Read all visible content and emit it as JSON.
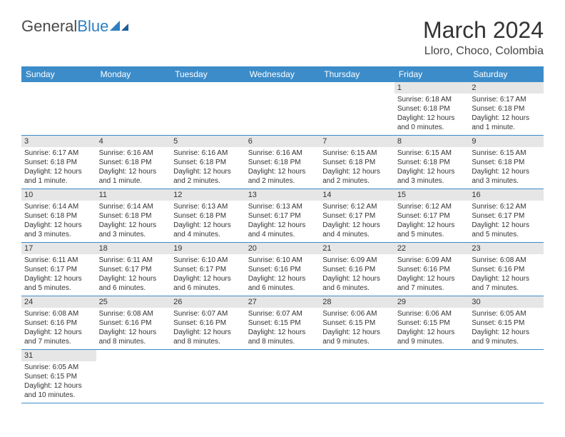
{
  "logo": {
    "general": "General",
    "blue": "Blue"
  },
  "title": "March 2024",
  "location": "Lloro, Choco, Colombia",
  "colors": {
    "header_bg": "#3c8cc9",
    "header_text": "#ffffff",
    "daynum_bg": "#e6e6e6",
    "row_border": "#3c8cc9",
    "logo_accent": "#2f7fc0",
    "body_text": "#333333"
  },
  "day_headers": [
    "Sunday",
    "Monday",
    "Tuesday",
    "Wednesday",
    "Thursday",
    "Friday",
    "Saturday"
  ],
  "weeks": [
    [
      {
        "n": "",
        "sr": "",
        "ss": "",
        "dl": ""
      },
      {
        "n": "",
        "sr": "",
        "ss": "",
        "dl": ""
      },
      {
        "n": "",
        "sr": "",
        "ss": "",
        "dl": ""
      },
      {
        "n": "",
        "sr": "",
        "ss": "",
        "dl": ""
      },
      {
        "n": "",
        "sr": "",
        "ss": "",
        "dl": ""
      },
      {
        "n": "1",
        "sr": "Sunrise: 6:18 AM",
        "ss": "Sunset: 6:18 PM",
        "dl": "Daylight: 12 hours and 0 minutes."
      },
      {
        "n": "2",
        "sr": "Sunrise: 6:17 AM",
        "ss": "Sunset: 6:18 PM",
        "dl": "Daylight: 12 hours and 1 minute."
      }
    ],
    [
      {
        "n": "3",
        "sr": "Sunrise: 6:17 AM",
        "ss": "Sunset: 6:18 PM",
        "dl": "Daylight: 12 hours and 1 minute."
      },
      {
        "n": "4",
        "sr": "Sunrise: 6:16 AM",
        "ss": "Sunset: 6:18 PM",
        "dl": "Daylight: 12 hours and 1 minute."
      },
      {
        "n": "5",
        "sr": "Sunrise: 6:16 AM",
        "ss": "Sunset: 6:18 PM",
        "dl": "Daylight: 12 hours and 2 minutes."
      },
      {
        "n": "6",
        "sr": "Sunrise: 6:16 AM",
        "ss": "Sunset: 6:18 PM",
        "dl": "Daylight: 12 hours and 2 minutes."
      },
      {
        "n": "7",
        "sr": "Sunrise: 6:15 AM",
        "ss": "Sunset: 6:18 PM",
        "dl": "Daylight: 12 hours and 2 minutes."
      },
      {
        "n": "8",
        "sr": "Sunrise: 6:15 AM",
        "ss": "Sunset: 6:18 PM",
        "dl": "Daylight: 12 hours and 3 minutes."
      },
      {
        "n": "9",
        "sr": "Sunrise: 6:15 AM",
        "ss": "Sunset: 6:18 PM",
        "dl": "Daylight: 12 hours and 3 minutes."
      }
    ],
    [
      {
        "n": "10",
        "sr": "Sunrise: 6:14 AM",
        "ss": "Sunset: 6:18 PM",
        "dl": "Daylight: 12 hours and 3 minutes."
      },
      {
        "n": "11",
        "sr": "Sunrise: 6:14 AM",
        "ss": "Sunset: 6:18 PM",
        "dl": "Daylight: 12 hours and 3 minutes."
      },
      {
        "n": "12",
        "sr": "Sunrise: 6:13 AM",
        "ss": "Sunset: 6:18 PM",
        "dl": "Daylight: 12 hours and 4 minutes."
      },
      {
        "n": "13",
        "sr": "Sunrise: 6:13 AM",
        "ss": "Sunset: 6:17 PM",
        "dl": "Daylight: 12 hours and 4 minutes."
      },
      {
        "n": "14",
        "sr": "Sunrise: 6:12 AM",
        "ss": "Sunset: 6:17 PM",
        "dl": "Daylight: 12 hours and 4 minutes."
      },
      {
        "n": "15",
        "sr": "Sunrise: 6:12 AM",
        "ss": "Sunset: 6:17 PM",
        "dl": "Daylight: 12 hours and 5 minutes."
      },
      {
        "n": "16",
        "sr": "Sunrise: 6:12 AM",
        "ss": "Sunset: 6:17 PM",
        "dl": "Daylight: 12 hours and 5 minutes."
      }
    ],
    [
      {
        "n": "17",
        "sr": "Sunrise: 6:11 AM",
        "ss": "Sunset: 6:17 PM",
        "dl": "Daylight: 12 hours and 5 minutes."
      },
      {
        "n": "18",
        "sr": "Sunrise: 6:11 AM",
        "ss": "Sunset: 6:17 PM",
        "dl": "Daylight: 12 hours and 6 minutes."
      },
      {
        "n": "19",
        "sr": "Sunrise: 6:10 AM",
        "ss": "Sunset: 6:17 PM",
        "dl": "Daylight: 12 hours and 6 minutes."
      },
      {
        "n": "20",
        "sr": "Sunrise: 6:10 AM",
        "ss": "Sunset: 6:16 PM",
        "dl": "Daylight: 12 hours and 6 minutes."
      },
      {
        "n": "21",
        "sr": "Sunrise: 6:09 AM",
        "ss": "Sunset: 6:16 PM",
        "dl": "Daylight: 12 hours and 6 minutes."
      },
      {
        "n": "22",
        "sr": "Sunrise: 6:09 AM",
        "ss": "Sunset: 6:16 PM",
        "dl": "Daylight: 12 hours and 7 minutes."
      },
      {
        "n": "23",
        "sr": "Sunrise: 6:08 AM",
        "ss": "Sunset: 6:16 PM",
        "dl": "Daylight: 12 hours and 7 minutes."
      }
    ],
    [
      {
        "n": "24",
        "sr": "Sunrise: 6:08 AM",
        "ss": "Sunset: 6:16 PM",
        "dl": "Daylight: 12 hours and 7 minutes."
      },
      {
        "n": "25",
        "sr": "Sunrise: 6:08 AM",
        "ss": "Sunset: 6:16 PM",
        "dl": "Daylight: 12 hours and 8 minutes."
      },
      {
        "n": "26",
        "sr": "Sunrise: 6:07 AM",
        "ss": "Sunset: 6:16 PM",
        "dl": "Daylight: 12 hours and 8 minutes."
      },
      {
        "n": "27",
        "sr": "Sunrise: 6:07 AM",
        "ss": "Sunset: 6:15 PM",
        "dl": "Daylight: 12 hours and 8 minutes."
      },
      {
        "n": "28",
        "sr": "Sunrise: 6:06 AM",
        "ss": "Sunset: 6:15 PM",
        "dl": "Daylight: 12 hours and 9 minutes."
      },
      {
        "n": "29",
        "sr": "Sunrise: 6:06 AM",
        "ss": "Sunset: 6:15 PM",
        "dl": "Daylight: 12 hours and 9 minutes."
      },
      {
        "n": "30",
        "sr": "Sunrise: 6:05 AM",
        "ss": "Sunset: 6:15 PM",
        "dl": "Daylight: 12 hours and 9 minutes."
      }
    ],
    [
      {
        "n": "31",
        "sr": "Sunrise: 6:05 AM",
        "ss": "Sunset: 6:15 PM",
        "dl": "Daylight: 12 hours and 10 minutes."
      },
      {
        "n": "",
        "sr": "",
        "ss": "",
        "dl": ""
      },
      {
        "n": "",
        "sr": "",
        "ss": "",
        "dl": ""
      },
      {
        "n": "",
        "sr": "",
        "ss": "",
        "dl": ""
      },
      {
        "n": "",
        "sr": "",
        "ss": "",
        "dl": ""
      },
      {
        "n": "",
        "sr": "",
        "ss": "",
        "dl": ""
      },
      {
        "n": "",
        "sr": "",
        "ss": "",
        "dl": ""
      }
    ]
  ]
}
